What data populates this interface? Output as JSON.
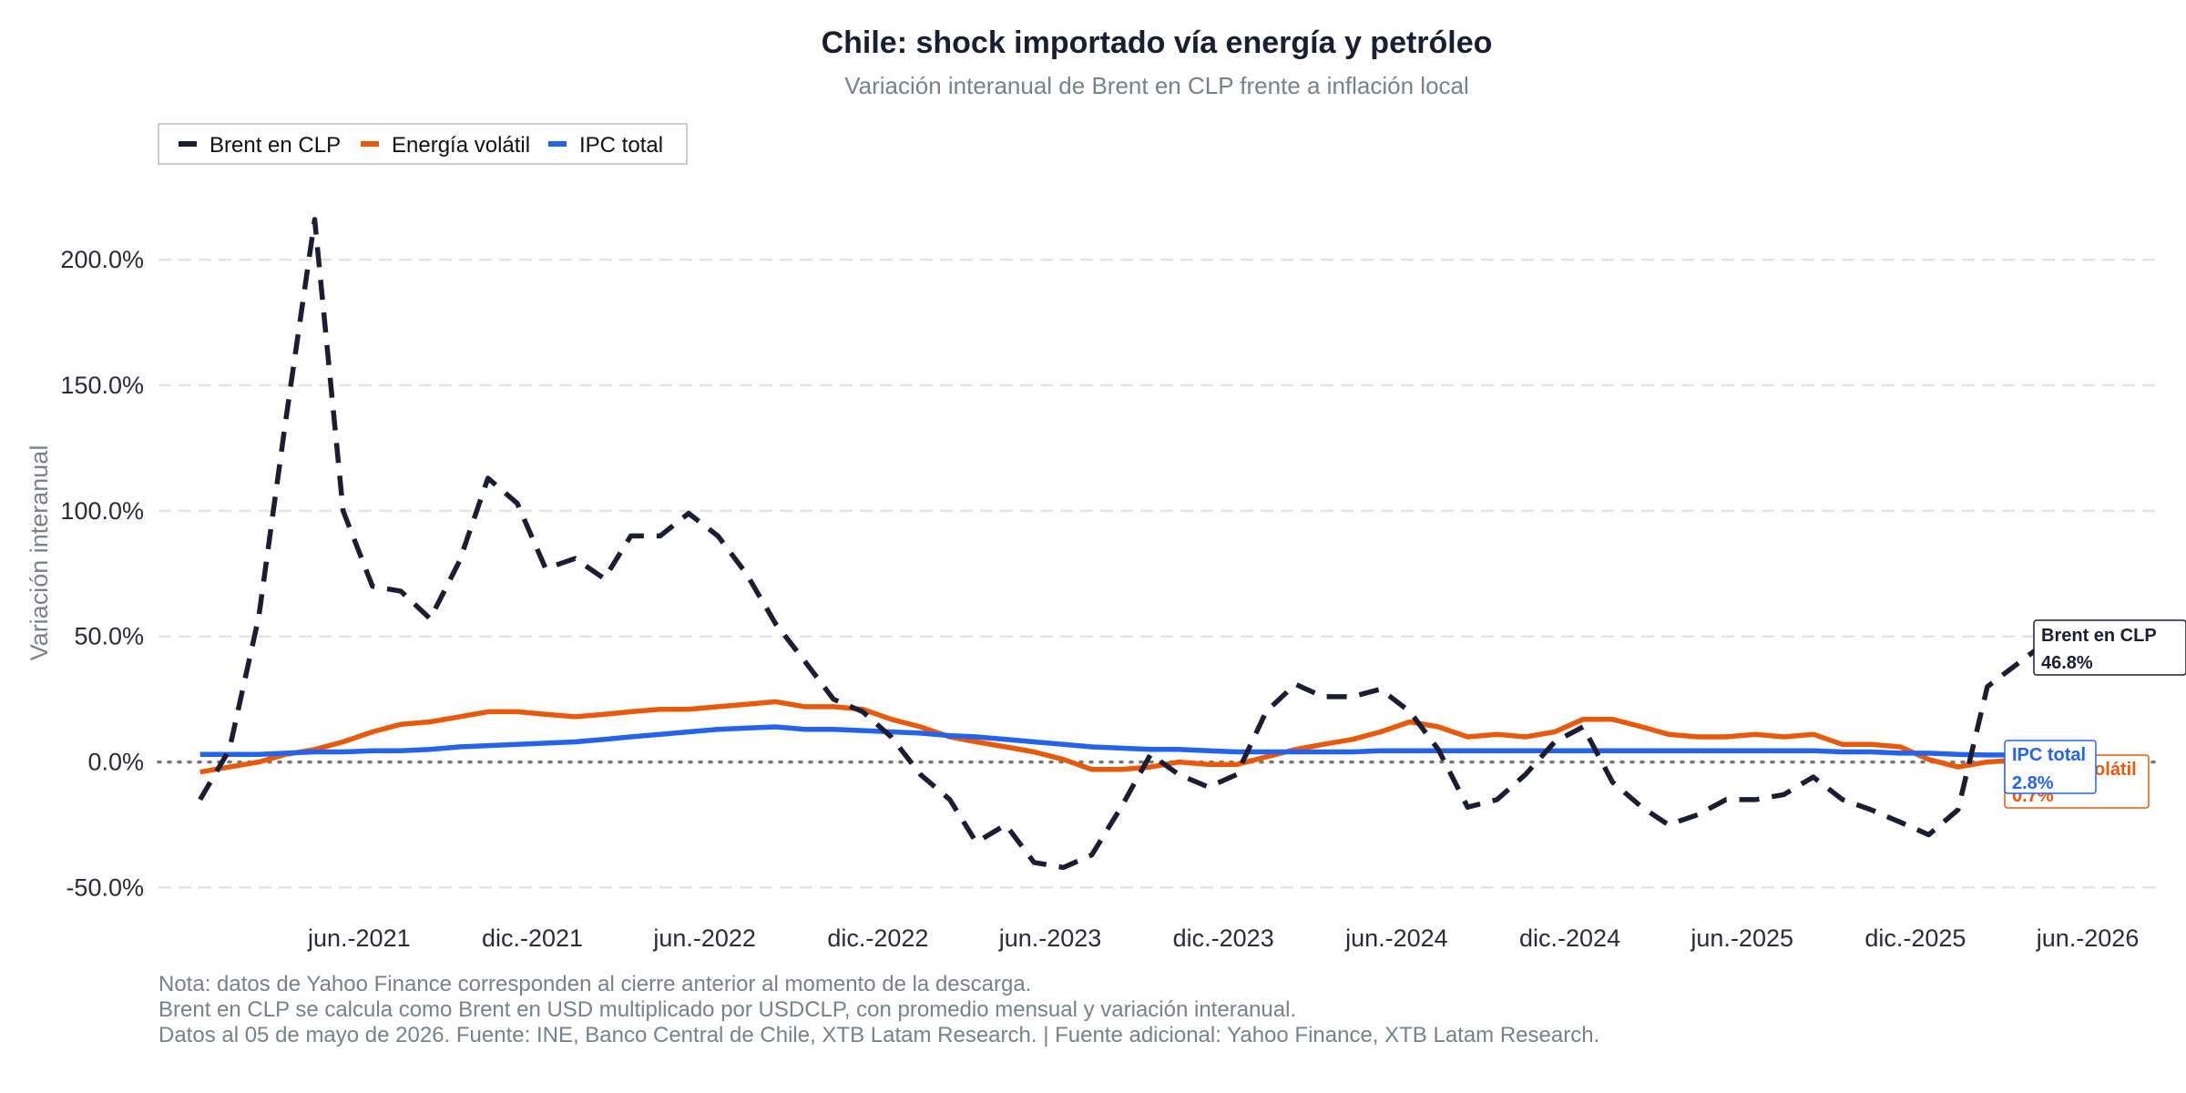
{
  "chart_data": {
    "type": "line",
    "title": "Chile: shock importado vía energía y petróleo",
    "subtitle": "Variación interanual de Brent en CLP frente a inflación local",
    "ylabel": "Variación interanual",
    "xlabel": "",
    "ylim": [
      -0.6,
      2.2
    ],
    "xlim": [
      "2020-11-01",
      "2026-08-15"
    ],
    "y_ticks": [
      -0.5,
      0,
      0.5,
      1.0,
      1.5,
      2.0
    ],
    "y_tick_labels": [
      "-50.0%",
      "0.0%",
      "50.0%",
      "100.0%",
      "150.0%",
      "200.0%"
    ],
    "x_ticks": [
      "2021-06-01",
      "2021-12-01",
      "2022-06-01",
      "2022-12-01",
      "2023-06-01",
      "2023-12-01",
      "2024-06-01",
      "2024-12-01",
      "2025-06-01",
      "2025-12-01",
      "2026-06-01"
    ],
    "x_tick_labels": [
      "jun.-2021",
      "dic.-2021",
      "jun.-2022",
      "dic.-2022",
      "jun.-2023",
      "dic.-2023",
      "jun.-2024",
      "dic.-2024",
      "jun.-2025",
      "dic.-2025",
      "jun.-2026"
    ],
    "grid": "horizontal dashed",
    "zero_line": "dotted",
    "legend_position": "top-left",
    "x": [
      "2020-12",
      "2021-01",
      "2021-02",
      "2021-03",
      "2021-04",
      "2021-05",
      "2021-06",
      "2021-07",
      "2021-08",
      "2021-09",
      "2021-10",
      "2021-11",
      "2021-12",
      "2022-01",
      "2022-02",
      "2022-03",
      "2022-04",
      "2022-05",
      "2022-06",
      "2022-07",
      "2022-08",
      "2022-09",
      "2022-10",
      "2022-11",
      "2022-12",
      "2023-01",
      "2023-02",
      "2023-03",
      "2023-04",
      "2023-05",
      "2023-06",
      "2023-07",
      "2023-08",
      "2023-09",
      "2023-10",
      "2023-11",
      "2023-12",
      "2024-01",
      "2024-02",
      "2024-03",
      "2024-04",
      "2024-05",
      "2024-06",
      "2024-07",
      "2024-08",
      "2024-09",
      "2024-10",
      "2024-11",
      "2024-12",
      "2025-01",
      "2025-02",
      "2025-03",
      "2025-04",
      "2025-05",
      "2025-06",
      "2025-07",
      "2025-08",
      "2025-09",
      "2025-10",
      "2025-11",
      "2025-12",
      "2026-01",
      "2026-02",
      "2026-03",
      "2026-04"
    ],
    "series": [
      {
        "name": "Brent en CLP",
        "color": "#1c1c33",
        "style": "dashed",
        "end_label": "46.8%",
        "values": [
          -0.15,
          0.05,
          0.58,
          1.35,
          2.16,
          1.0,
          0.7,
          0.68,
          0.57,
          0.8,
          1.13,
          1.03,
          0.77,
          0.81,
          0.73,
          0.9,
          0.9,
          0.99,
          0.9,
          0.75,
          0.55,
          0.4,
          0.25,
          0.2,
          0.1,
          -0.05,
          -0.15,
          -0.32,
          -0.25,
          -0.4,
          -0.42,
          -0.37,
          -0.18,
          0.03,
          -0.05,
          -0.1,
          -0.05,
          0.2,
          0.31,
          0.26,
          0.26,
          0.29,
          0.2,
          0.05,
          -0.18,
          -0.15,
          -0.05,
          0.08,
          0.14,
          -0.08,
          -0.18,
          -0.25,
          -0.21,
          -0.15,
          -0.15,
          -0.13,
          -0.06,
          -0.15,
          -0.19,
          -0.24,
          -0.29,
          -0.19,
          0.3,
          0.38,
          0.468
        ]
      },
      {
        "name": "Energía volátil",
        "color": "#e8590c",
        "style": "solid",
        "end_label": "0.7%",
        "values": [
          -0.04,
          -0.02,
          0.0,
          0.03,
          0.05,
          0.08,
          0.12,
          0.15,
          0.16,
          0.18,
          0.2,
          0.2,
          0.19,
          0.18,
          0.19,
          0.2,
          0.21,
          0.21,
          0.22,
          0.23,
          0.24,
          0.22,
          0.22,
          0.21,
          0.17,
          0.14,
          0.1,
          0.08,
          0.06,
          0.04,
          0.01,
          -0.03,
          -0.03,
          -0.02,
          0.0,
          -0.01,
          -0.01,
          0.02,
          0.05,
          0.07,
          0.09,
          0.12,
          0.16,
          0.14,
          0.1,
          0.11,
          0.1,
          0.12,
          0.17,
          0.17,
          0.14,
          0.11,
          0.1,
          0.1,
          0.11,
          0.1,
          0.11,
          0.07,
          0.07,
          0.06,
          0.01,
          -0.02,
          0.0,
          0.007,
          0.007
        ]
      },
      {
        "name": "IPC total",
        "color": "#2563eb",
        "style": "solid",
        "end_label": "2.8%",
        "values": [
          0.03,
          0.03,
          0.03,
          0.035,
          0.04,
          0.04,
          0.045,
          0.045,
          0.05,
          0.06,
          0.065,
          0.07,
          0.075,
          0.08,
          0.09,
          0.1,
          0.11,
          0.12,
          0.13,
          0.135,
          0.14,
          0.13,
          0.13,
          0.125,
          0.12,
          0.115,
          0.105,
          0.1,
          0.09,
          0.08,
          0.07,
          0.06,
          0.055,
          0.05,
          0.05,
          0.045,
          0.04,
          0.04,
          0.04,
          0.04,
          0.04,
          0.045,
          0.045,
          0.045,
          0.045,
          0.045,
          0.045,
          0.045,
          0.045,
          0.045,
          0.045,
          0.045,
          0.045,
          0.045,
          0.045,
          0.045,
          0.045,
          0.04,
          0.04,
          0.035,
          0.035,
          0.03,
          0.028,
          0.028,
          0.028
        ]
      }
    ]
  },
  "legend": [
    {
      "name": "Brent en CLP",
      "color": "#1c1c33",
      "style": "dashed"
    },
    {
      "name": "Energía volátil",
      "color": "#e8590c",
      "style": "solid"
    },
    {
      "name": "IPC total",
      "color": "#2563eb",
      "style": "solid"
    }
  ],
  "end_labels": [
    {
      "name": "Brent en CLP",
      "value": "46.8%"
    },
    {
      "name": "Energía volátil",
      "value": "0.7%"
    },
    {
      "name": "IPC total",
      "value": "2.8%"
    }
  ],
  "notes": [
    "Nota: datos de Yahoo Finance corresponden al cierre anterior al momento de la descarga.",
    "Brent en CLP se calcula como Brent en USD multiplicado por USDCLP, con promedio mensual y variación interanual.",
    "Datos al 05 de mayo de 2026. Fuente: INE, Banco Central de Chile, XTB Latam Research. | Fuente adicional: Yahoo Finance, XTB Latam Research."
  ]
}
